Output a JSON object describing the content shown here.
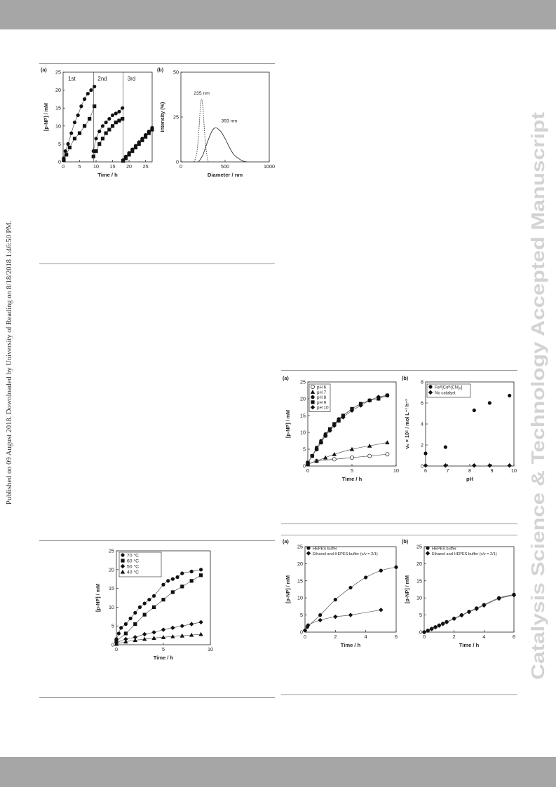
{
  "header_bar_color": "#a6a6a6",
  "sidebar_text": "Published on 09 August 2018. Downloaded by University of Reading on 8/18/2018 1:46:50 PM.",
  "watermark": "Catalysis Science & Technology Accepted Manuscript",
  "watermark_color": "#d3d3d3",
  "figures": {
    "fig1a": {
      "panel": "(a)",
      "xlabel": "Time / h",
      "ylabel": "[p-NP] / mM",
      "xlim": [
        0,
        27
      ],
      "ylim": [
        0,
        25
      ],
      "xticks": [
        0,
        5,
        10,
        15,
        20,
        25
      ],
      "yticks": [
        0,
        5,
        10,
        15,
        20,
        25
      ],
      "cycle_labels": [
        "1st",
        "2nd",
        "3rd"
      ]
    },
    "fig1b": {
      "panel": "(b)",
      "xlabel": "Diameter / nm",
      "ylabel": "Intensity (%)",
      "xlim": [
        0,
        1000
      ],
      "ylim": [
        0,
        50
      ],
      "xticks": [
        0,
        500,
        1000
      ],
      "yticks": [
        0,
        25,
        50
      ],
      "peak_labels": [
        "235 nm",
        "393 nm"
      ]
    },
    "fig2": {
      "xlabel": "Time / h",
      "ylabel": "[p-NP] / mM",
      "xlim": [
        0,
        10
      ],
      "ylim": [
        0,
        25
      ],
      "xticks": [
        0,
        5,
        10
      ],
      "yticks": [
        0,
        5,
        10,
        15,
        20,
        25
      ],
      "legend": [
        "70 °C",
        "60 °C",
        "50 °C",
        "40 °C"
      ]
    },
    "fig3a": {
      "panel": "(a)",
      "xlabel": "Time / h",
      "ylabel": "[p-NP] / mM",
      "xlim": [
        0,
        10
      ],
      "ylim": [
        0,
        25
      ],
      "xticks": [
        0,
        5,
        10
      ],
      "yticks": [
        0,
        5,
        10,
        15,
        20,
        25
      ],
      "legend": [
        "pH 6",
        "pH 7",
        "pH 8",
        "pH 9",
        "pH 10"
      ]
    },
    "fig3b": {
      "panel": "(b)",
      "xlabel": "pH",
      "ylabel": "v₀ × 10⁵ / mol L⁻¹ h⁻¹",
      "xlim": [
        6,
        10
      ],
      "ylim": [
        0,
        8
      ],
      "xticks": [
        6,
        7,
        8,
        9,
        10
      ],
      "yticks": [
        0,
        2,
        4,
        6,
        8
      ],
      "legend": [
        "Feᴵᴵᴵ[Coᴵᴵᴵ(CN)₆]",
        "No catalyst"
      ]
    },
    "fig4a": {
      "panel": "(a)",
      "xlabel": "Time / h",
      "ylabel": "[p-NP] / mM",
      "xlim": [
        0,
        6
      ],
      "ylim": [
        0,
        25
      ],
      "xticks": [
        0,
        2,
        4,
        6
      ],
      "yticks": [
        0,
        5,
        10,
        15,
        20,
        25
      ],
      "legend": [
        "HEPES buffer",
        "Ethanol and HEPES buffer (v/v = 2/1)"
      ]
    },
    "fig4b": {
      "panel": "(b)",
      "xlabel": "Time / h",
      "ylabel": "[p-NP] / mM",
      "xlim": [
        0,
        6
      ],
      "ylim": [
        0,
        25
      ],
      "xticks": [
        0,
        2,
        4,
        6
      ],
      "yticks": [
        0,
        5,
        10,
        15,
        20,
        25
      ],
      "legend": [
        "HEPES buffer",
        "Ethanol and HEPES buffer (v/v = 2/1)"
      ]
    }
  },
  "chart_data": [
    {
      "id": "fig1a",
      "type": "scatter",
      "series": [
        {
          "marker": "circle",
          "x": [
            0.2,
            0.7,
            1.5,
            2.5,
            3.5,
            4.5,
            5.5,
            6.5,
            7.5,
            8.5,
            9.5
          ],
          "y": [
            1,
            3,
            5,
            8,
            11,
            13,
            15.5,
            17.5,
            19,
            20,
            21
          ]
        },
        {
          "marker": "square",
          "x": [
            0.2,
            1,
            2,
            3.5,
            5,
            6.5,
            8,
            9.5
          ],
          "y": [
            0.5,
            2,
            4,
            6.5,
            8,
            10,
            12,
            15.5
          ]
        },
        {
          "marker": "circle",
          "x": [
            9.2,
            10,
            11,
            12,
            13,
            14,
            15,
            16,
            17,
            18
          ],
          "y": [
            3,
            6.5,
            8.5,
            10,
            11,
            12,
            13,
            13.5,
            14,
            15
          ]
        },
        {
          "marker": "square",
          "x": [
            9.2,
            10,
            11,
            12,
            13,
            14,
            15,
            16,
            17,
            18
          ],
          "y": [
            1.5,
            3,
            5,
            6.5,
            8,
            9,
            10,
            11,
            11.5,
            12
          ]
        },
        {
          "marker": "circle",
          "x": [
            18.2,
            19,
            20,
            21,
            22,
            23,
            24,
            25,
            26,
            27
          ],
          "y": [
            0.5,
            1.5,
            2.5,
            3.5,
            4.5,
            5.5,
            6.5,
            7.5,
            8.5,
            9.5
          ]
        },
        {
          "marker": "square",
          "x": [
            18.2,
            19,
            20,
            21,
            22,
            23,
            24,
            25,
            26,
            27
          ],
          "y": [
            0.3,
            1,
            2,
            3,
            4,
            5,
            6,
            7,
            8,
            9
          ]
        }
      ]
    },
    {
      "id": "fig1b",
      "type": "line",
      "series": [
        {
          "style": "dotted",
          "x": [
            150,
            180,
            200,
            220,
            235,
            250,
            270,
            290,
            310
          ],
          "y": [
            0,
            5,
            15,
            30,
            35,
            30,
            15,
            5,
            0
          ]
        },
        {
          "style": "solid",
          "x": [
            200,
            250,
            300,
            350,
            393,
            450,
            500,
            550,
            600,
            650,
            700,
            750
          ],
          "y": [
            0,
            4,
            11,
            17,
            19,
            17,
            13,
            8,
            4,
            2,
            0.5,
            0
          ]
        }
      ]
    },
    {
      "id": "fig2",
      "type": "scatter",
      "series": [
        {
          "name": "70 °C",
          "marker": "circle",
          "x": [
            0,
            0.25,
            0.5,
            1,
            1.5,
            2,
            2.5,
            3,
            3.5,
            4,
            5,
            5.5,
            6,
            6.5,
            7,
            8,
            9
          ],
          "y": [
            1.5,
            3,
            4.5,
            5.5,
            7,
            8.5,
            10,
            11,
            12,
            13,
            16,
            17,
            17.5,
            18,
            19,
            19.5,
            20
          ]
        },
        {
          "name": "60 °C",
          "marker": "square",
          "x": [
            0,
            1,
            2,
            3,
            4,
            5,
            6,
            7,
            8,
            9
          ],
          "y": [
            1,
            3,
            5.5,
            8,
            10,
            12,
            14,
            15.5,
            17,
            18.5
          ]
        },
        {
          "name": "50 °C",
          "marker": "diamond",
          "x": [
            0,
            1,
            2,
            3,
            4,
            5,
            6,
            7,
            8,
            9
          ],
          "y": [
            0.5,
            1.5,
            2,
            2.8,
            3.3,
            4,
            4.5,
            5,
            5.5,
            6
          ]
        },
        {
          "name": "40 °C",
          "marker": "triangle",
          "x": [
            0,
            1,
            2,
            3,
            4,
            5,
            6,
            7,
            8,
            9
          ],
          "y": [
            0.2,
            0.8,
            1.2,
            1.5,
            1.8,
            2,
            2.2,
            2.4,
            2.6,
            2.8
          ]
        }
      ]
    },
    {
      "id": "fig3a",
      "type": "scatter",
      "series": [
        {
          "name": "pH 6",
          "marker": "open-circle",
          "x": [
            0,
            1,
            3,
            5,
            7,
            9
          ],
          "y": [
            0.5,
            1.5,
            2,
            2.5,
            3,
            3.5
          ]
        },
        {
          "name": "pH 7",
          "marker": "triangle",
          "x": [
            0,
            1,
            2,
            3,
            5,
            7,
            9
          ],
          "y": [
            0.5,
            1.5,
            2.5,
            3.5,
            5,
            6,
            7
          ]
        },
        {
          "name": "pH 8",
          "marker": "circle",
          "x": [
            0,
            0.5,
            1,
            1.5,
            2,
            2.5,
            3,
            3.5,
            4,
            5,
            6,
            7,
            8,
            9
          ],
          "y": [
            1,
            3,
            5.5,
            7.5,
            9.5,
            11,
            12.5,
            14,
            15,
            17,
            18.5,
            19.5,
            20.5,
            21
          ]
        },
        {
          "name": "pH 9",
          "marker": "square",
          "x": [
            0,
            0.5,
            1,
            1.5,
            2,
            2.5,
            3,
            3.5,
            4,
            5,
            6,
            7,
            8,
            9
          ],
          "y": [
            1,
            3,
            5,
            7,
            9,
            11,
            12.5,
            13.5,
            15,
            17,
            18.5,
            19.5,
            20,
            21
          ]
        },
        {
          "name": "pH 10",
          "marker": "diamond",
          "x": [
            0,
            0.5,
            1,
            1.5,
            2,
            2.5,
            3,
            3.5,
            4,
            5,
            6,
            7,
            8,
            9
          ],
          "y": [
            1,
            3,
            5,
            7,
            9,
            10.5,
            12,
            13.5,
            14.5,
            16.5,
            18,
            19.5,
            20.5,
            21
          ]
        }
      ]
    },
    {
      "id": "fig3b",
      "type": "scatter",
      "series": [
        {
          "name": "Feᴵᴵᴵ[Coᴵᴵᴵ(CN)₆]",
          "marker": "circle",
          "x": [
            6,
            6.9,
            8.2,
            8.9,
            9.8
          ],
          "y": [
            1.2,
            1.8,
            5.3,
            6.0,
            6.7
          ]
        },
        {
          "name": "No catalyst",
          "marker": "diamond",
          "x": [
            6,
            6.9,
            8.2,
            8.9,
            9.8
          ],
          "y": [
            0.05,
            0.05,
            0.05,
            0.05,
            0.05
          ]
        }
      ]
    },
    {
      "id": "fig4a",
      "type": "scatter",
      "series": [
        {
          "name": "HEPES buffer",
          "marker": "circle",
          "x": [
            0,
            0.15,
            1,
            2,
            3,
            4,
            5,
            6
          ],
          "y": [
            0.5,
            1.5,
            5,
            9.5,
            13,
            16,
            18,
            19
          ]
        },
        {
          "name": "Ethanol and HEPES buffer (v/v = 2/1)",
          "marker": "diamond",
          "x": [
            0,
            0.2,
            1,
            2,
            3,
            5
          ],
          "y": [
            0.5,
            2,
            3.5,
            4.5,
            5,
            6.5
          ]
        }
      ]
    },
    {
      "id": "fig4b",
      "type": "scatter",
      "series": [
        {
          "name": "HEPES buffer",
          "marker": "circle",
          "x": [
            0,
            0.25,
            0.5,
            0.75,
            1,
            1.25,
            1.5,
            2,
            2.5,
            3,
            3.5,
            4,
            5,
            6
          ],
          "y": [
            0,
            0.5,
            1,
            1.5,
            2,
            2.5,
            3,
            4,
            5,
            6,
            7,
            8,
            10,
            11
          ]
        },
        {
          "name": "Ethanol and HEPES buffer (v/v = 2/1)",
          "marker": "diamond",
          "x": [
            0,
            0.25,
            0.5,
            0.75,
            1,
            1.25,
            1.5,
            2,
            2.5,
            3,
            3.5,
            4,
            5,
            6
          ],
          "y": [
            0,
            0.4,
            0.9,
            1.4,
            1.9,
            2.4,
            2.9,
            3.9,
            4.9,
            5.9,
            6.8,
            7.8,
            9.8,
            10.8
          ]
        }
      ]
    }
  ]
}
